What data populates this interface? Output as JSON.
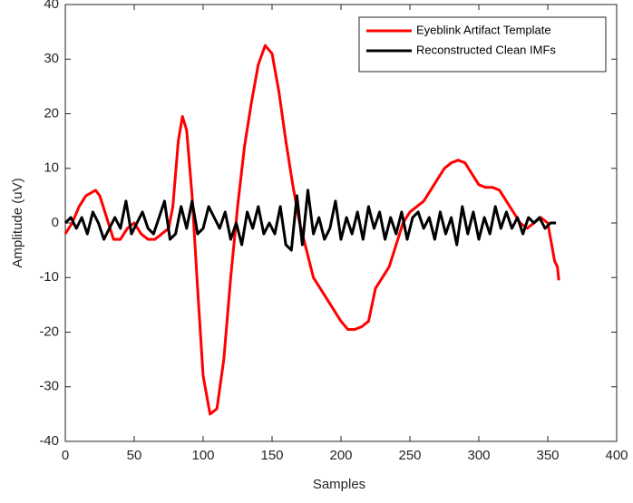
{
  "chart_data": {
    "type": "line",
    "xlabel": "Samples",
    "ylabel": "Amplitude (uV)",
    "xlim": [
      0,
      400
    ],
    "xticks": [
      0,
      50,
      100,
      150,
      200,
      250,
      300,
      350,
      400
    ],
    "ylim": [
      -40,
      40
    ],
    "yticks": [
      -40,
      -30,
      -20,
      -10,
      0,
      10,
      20,
      30,
      40
    ],
    "legend": "upper right",
    "series": [
      {
        "name": "Eyeblink Artifact Template",
        "color": "#ff0000",
        "x": [
          0,
          5,
          10,
          15,
          22,
          25,
          30,
          35,
          40,
          45,
          50,
          55,
          60,
          65,
          70,
          75,
          78,
          82,
          85,
          88,
          92,
          96,
          100,
          105,
          110,
          115,
          120,
          125,
          130,
          135,
          140,
          145,
          150,
          155,
          160,
          165,
          170,
          175,
          180,
          185,
          190,
          195,
          200,
          205,
          210,
          215,
          220,
          225,
          230,
          235,
          240,
          245,
          250,
          255,
          260,
          265,
          270,
          275,
          280,
          285,
          290,
          295,
          300,
          305,
          310,
          315,
          320,
          325,
          330,
          335,
          340,
          345,
          350,
          355,
          357,
          358
        ],
        "values": [
          -2,
          0,
          3,
          5,
          6,
          5,
          1,
          -3,
          -3,
          -1,
          0,
          -2,
          -3,
          -3,
          -2,
          -1,
          3,
          15,
          19.5,
          17,
          5,
          -12,
          -28,
          -35,
          -34,
          -25,
          -10,
          3,
          14,
          22,
          29,
          32.5,
          31,
          24,
          15,
          7,
          0,
          -5,
          -10,
          -12,
          -14,
          -16,
          -18,
          -19.5,
          -19.5,
          -19,
          -18,
          -12,
          -10,
          -8,
          -4,
          0,
          2,
          3,
          4,
          6,
          8,
          10,
          11,
          11.5,
          11,
          9,
          7,
          6.5,
          6.5,
          6,
          4,
          2,
          0,
          -1,
          0,
          1,
          0,
          -7,
          -8,
          -10.5
        ]
      },
      {
        "name": "Reconstructed Clean IMFs",
        "color": "#000000",
        "x": [
          0,
          4,
          8,
          12,
          16,
          20,
          24,
          28,
          32,
          36,
          40,
          44,
          48,
          52,
          56,
          60,
          64,
          68,
          72,
          76,
          80,
          84,
          88,
          92,
          96,
          100,
          104,
          108,
          112,
          116,
          120,
          124,
          128,
          132,
          136,
          140,
          144,
          148,
          152,
          156,
          160,
          164,
          168,
          172,
          176,
          180,
          184,
          188,
          192,
          196,
          200,
          204,
          208,
          212,
          216,
          220,
          224,
          228,
          232,
          236,
          240,
          244,
          248,
          252,
          256,
          260,
          264,
          268,
          272,
          276,
          280,
          284,
          288,
          292,
          296,
          300,
          304,
          308,
          312,
          316,
          320,
          324,
          328,
          332,
          336,
          340,
          344,
          348,
          352,
          356
        ],
        "values": [
          0,
          1,
          -1,
          1,
          -2,
          2,
          0,
          -3,
          -1,
          1,
          -1,
          4,
          -2,
          0,
          2,
          -1,
          -2,
          1,
          4,
          -3,
          -2,
          3,
          -1,
          4,
          -2,
          -1,
          3,
          1,
          -1,
          2,
          -3,
          0,
          -4,
          2,
          -1,
          3,
          -2,
          0,
          -2,
          3,
          -4,
          -5,
          5,
          -4,
          6,
          -2,
          1,
          -3,
          -1,
          4,
          -3,
          1,
          -2,
          2,
          -3,
          3,
          -1,
          2,
          -3,
          1,
          -2,
          2,
          -3,
          1,
          2,
          -1,
          1,
          -3,
          2,
          -2,
          1,
          -4,
          3,
          -2,
          2,
          -3,
          1,
          -2,
          3,
          -1,
          2,
          -1,
          1,
          -2,
          1,
          0,
          1,
          -1,
          0,
          0
        ]
      }
    ]
  }
}
